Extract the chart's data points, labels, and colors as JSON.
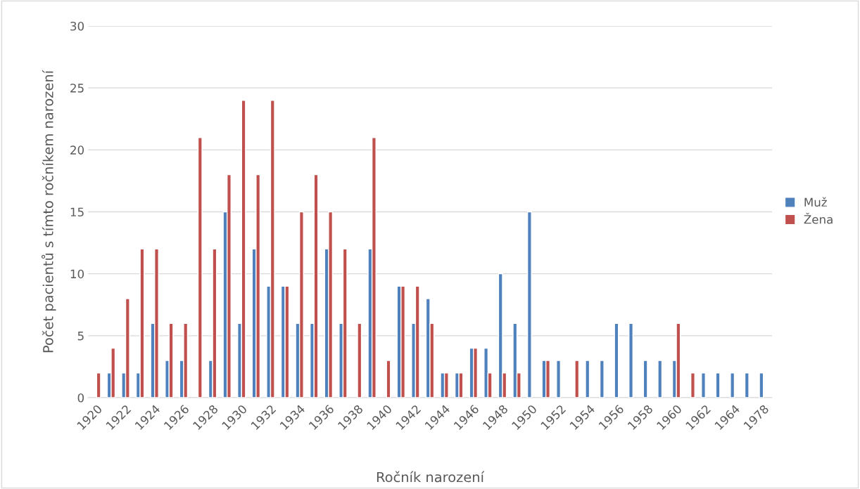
{
  "chart_data": {
    "type": "bar",
    "xlabel": "Ročník narození",
    "ylabel": "Počet pacientů s tímto ročníkem narození",
    "categories": [
      "1920",
      null,
      "1922",
      null,
      "1924",
      null,
      "1926",
      null,
      "1928",
      null,
      "1930",
      null,
      "1932",
      null,
      "1934",
      null,
      "1936",
      null,
      "1938",
      null,
      "1940",
      null,
      "1942",
      null,
      "1944",
      null,
      "1946",
      null,
      "1948",
      null,
      "1950",
      null,
      "1952",
      null,
      "1954",
      null,
      "1956",
      null,
      "1958",
      null,
      "1960",
      null,
      "1962",
      null,
      "1964",
      null,
      "1978"
    ],
    "series": [
      {
        "name": "Muž",
        "color": "#4f81bd",
        "values": [
          null,
          2,
          2,
          2,
          6,
          3,
          3,
          null,
          3,
          15,
          6,
          12,
          9,
          9,
          6,
          6,
          12,
          6,
          null,
          12,
          null,
          9,
          6,
          8,
          2,
          2,
          4,
          4,
          10,
          6,
          15,
          3,
          3,
          null,
          3,
          3,
          6,
          6,
          3,
          3,
          3,
          null,
          2,
          2,
          2,
          2,
          2
        ]
      },
      {
        "name": "Žena",
        "color": "#c0504d",
        "values": [
          2,
          4,
          8,
          12,
          12,
          6,
          6,
          21,
          12,
          18,
          24,
          18,
          24,
          9,
          15,
          18,
          15,
          12,
          6,
          21,
          3,
          9,
          9,
          6,
          2,
          2,
          4,
          2,
          2,
          2,
          null,
          3,
          null,
          3,
          null,
          null,
          null,
          null,
          null,
          null,
          6,
          2,
          null,
          null,
          null,
          null,
          null
        ]
      }
    ],
    "ylim": [
      0,
      30
    ],
    "yticks": [
      0,
      5,
      10,
      15,
      20,
      25,
      30
    ],
    "grid": "y",
    "legend": "right"
  }
}
